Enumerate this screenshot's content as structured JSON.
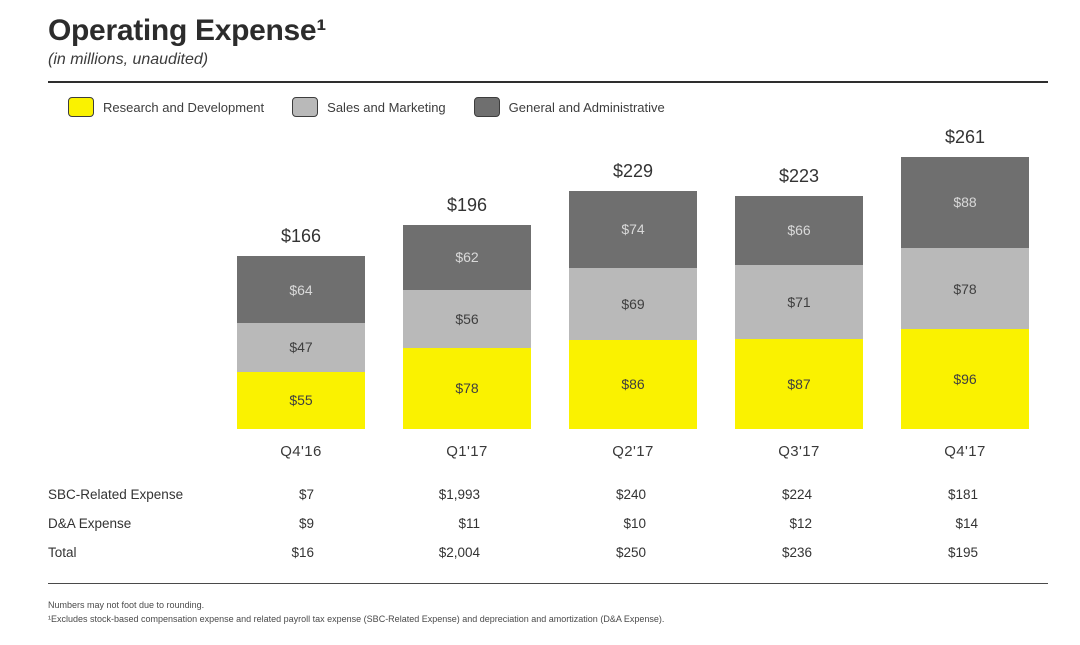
{
  "header": {
    "title": "Operating Expense¹",
    "subtitle": "(in millions, unaudited)"
  },
  "legend": [
    {
      "label": "Research and Development",
      "color": "#FAF200"
    },
    {
      "label": "Sales and Marketing",
      "color": "#B9B9B9"
    },
    {
      "label": "General and Administrative",
      "color": "#6F6F6F"
    }
  ],
  "chart_data": {
    "type": "bar",
    "stacked": true,
    "title": "Operating Expense¹",
    "units": "millions USD, unaudited",
    "categories": [
      "Q4'16",
      "Q1'17",
      "Q2'17",
      "Q3'17",
      "Q4'17"
    ],
    "series": [
      {
        "name": "Research and Development",
        "color": "#FAF200",
        "label_color": "#3f3f3f",
        "values": [
          55,
          78,
          86,
          87,
          96
        ]
      },
      {
        "name": "Sales and Marketing",
        "color": "#B9B9B9",
        "label_color": "#3f3f3f",
        "values": [
          47,
          56,
          69,
          71,
          78
        ]
      },
      {
        "name": "General and Administrative",
        "color": "#6F6F6F",
        "label_color": "#d9d9d9",
        "values": [
          64,
          62,
          74,
          66,
          88
        ]
      }
    ],
    "segment_labels": [
      [
        "$55",
        "$78",
        "$86",
        "$87",
        "$96"
      ],
      [
        "$47",
        "$56",
        "$69",
        "$71",
        "$78"
      ],
      [
        "$64",
        "$62",
        "$74",
        "$66",
        "$88"
      ]
    ],
    "totals": [
      166,
      196,
      229,
      223,
      261
    ],
    "total_labels": [
      "$166",
      "$196",
      "$229",
      "$223",
      "$261"
    ],
    "ylim": [
      0,
      261
    ],
    "grid": false,
    "legend_position": "top-left"
  },
  "table": {
    "rows": [
      {
        "label": "SBC-Related Expense",
        "values": [
          "$7",
          "$1,993",
          "$240",
          "$224",
          "$181"
        ]
      },
      {
        "label": "D&A Expense",
        "values": [
          "$9",
          "$11",
          "$10",
          "$12",
          "$14"
        ]
      },
      {
        "label": "Total",
        "values": [
          "$16",
          "$2,004",
          "$250",
          "$236",
          "$195"
        ]
      }
    ]
  },
  "footnotes": [
    "Numbers may not foot due to rounding.",
    "¹Excludes stock-based compensation expense and related payroll tax expense (SBC-Related Expense) and depreciation and amortization (D&A Expense)."
  ]
}
